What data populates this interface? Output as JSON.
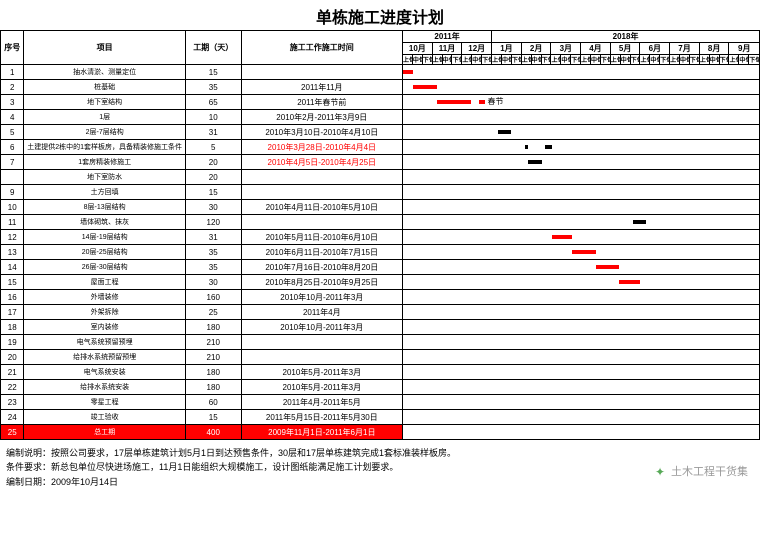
{
  "title": "单栋施工进度计划",
  "columns": {
    "seq": "序号",
    "name": "项目",
    "duration": "工期（天）",
    "time": "施工工作施工时间"
  },
  "year_groups": [
    {
      "label": "2011年",
      "months": [
        "10月",
        "11月",
        "12月"
      ]
    },
    {
      "label": "2018年",
      "months": [
        "1月",
        "2月",
        "3月",
        "4月",
        "5月",
        "6月",
        "7月",
        "8月",
        "9月"
      ]
    }
  ],
  "sub_labels": [
    "上旬",
    "中旬",
    "下旬"
  ],
  "timeline": {
    "total_subcols": 36
  },
  "bar_styles": {
    "black": "#000000",
    "red": "#ff0000"
  },
  "rows": [
    {
      "seq": 1,
      "name": "抽水清淤、测量定位",
      "dur": 15,
      "time": "",
      "bars": [
        {
          "start": 0,
          "len": 1.5,
          "color": "red"
        }
      ]
    },
    {
      "seq": 2,
      "name": "桩基础",
      "dur": 35,
      "time": "2011年11月",
      "bars": [
        {
          "start": 1.5,
          "len": 3.5,
          "color": "red"
        }
      ]
    },
    {
      "seq": 3,
      "name": "地下室结构",
      "dur": 65,
      "time": "2011年春节前",
      "bars": [
        {
          "start": 5,
          "len": 5,
          "color": "red"
        },
        {
          "start": 11.2,
          "len": 1.0,
          "color": "red"
        }
      ],
      "annot": {
        "pos": 12.5,
        "text": "春节"
      }
    },
    {
      "seq": 4,
      "name": "1层",
      "dur": 10,
      "time": "2010年2月-2011年3月9日",
      "bars": []
    },
    {
      "seq": 5,
      "name": "2层-7层结构",
      "dur": 31,
      "time": "2010年3月10日-2010年4月10日",
      "bars": [
        {
          "start": 14,
          "len": 2,
          "color": "black"
        }
      ]
    },
    {
      "seq": 6,
      "name": "土建提供2栋中的1套样板房，具备精装修施工条件",
      "dur": 5,
      "time": "2010年3月28日-2010年4月4日",
      "time_red": true,
      "bars": [
        {
          "start": 18,
          "len": 0.5,
          "color": "black"
        },
        {
          "start": 21,
          "len": 1,
          "color": "black"
        }
      ]
    },
    {
      "seq": 7,
      "name": "1套房精装修施工",
      "dur": 20,
      "time": "2010年4月5日-2010年4月25日",
      "time_red": true,
      "bars": [
        {
          "start": 18.5,
          "len": 2,
          "color": "black"
        }
      ]
    },
    {
      "seq": "",
      "name": "地下室防水",
      "dur": 20,
      "time": "",
      "bars": []
    },
    {
      "seq": 9,
      "name": "土方回填",
      "dur": 15,
      "time": "",
      "bars": []
    },
    {
      "seq": 10,
      "name": "8层-13层结构",
      "dur": 30,
      "time": "2010年4月11日-2010年5月10日",
      "bars": []
    },
    {
      "seq": 11,
      "name": "墙体砌筑、抹灰",
      "dur": 120,
      "time": "",
      "bars": [
        {
          "start": 34,
          "len": 2,
          "color": "black"
        }
      ]
    },
    {
      "seq": 12,
      "name": "14层-19层结构",
      "dur": 31,
      "time": "2010年5月11日-2010年6月10日",
      "bars": [
        {
          "start": 22,
          "len": 3,
          "color": "red"
        }
      ]
    },
    {
      "seq": 13,
      "name": "20层-25层结构",
      "dur": 35,
      "time": "2010年6月11日-2010年7月15日",
      "bars": [
        {
          "start": 25,
          "len": 3.5,
          "color": "red"
        }
      ]
    },
    {
      "seq": 14,
      "name": "26层-30层结构",
      "dur": 35,
      "time": "2010年7月16日-2010年8月20日",
      "bars": [
        {
          "start": 28.5,
          "len": 3.5,
          "color": "red"
        }
      ]
    },
    {
      "seq": 15,
      "name": "屋面工程",
      "dur": 30,
      "time": "2010年8月25日-2010年9月25日",
      "bars": [
        {
          "start": 32,
          "len": 3,
          "color": "red"
        }
      ]
    },
    {
      "seq": 16,
      "name": "外墙装修",
      "dur": 160,
      "time": "2010年10月-2011年3月",
      "bars": []
    },
    {
      "seq": 17,
      "name": "外架拆除",
      "dur": 25,
      "time": "2011年4月",
      "bars": []
    },
    {
      "seq": 18,
      "name": "室内装修",
      "dur": 180,
      "time": "2010年10月-2011年3月",
      "bars": []
    },
    {
      "seq": 19,
      "name": "电气系统预留预埋",
      "dur": 210,
      "time": "",
      "bars": []
    },
    {
      "seq": 20,
      "name": "给排水系统预留预埋",
      "dur": 210,
      "time": "",
      "bars": []
    },
    {
      "seq": 21,
      "name": "电气系统安装",
      "dur": 180,
      "time": "2010年5月-2011年3月",
      "bars": []
    },
    {
      "seq": 22,
      "name": "给排水系统安装",
      "dur": 180,
      "time": "2010年5月-2011年3月",
      "bars": []
    },
    {
      "seq": 23,
      "name": "零星工程",
      "dur": 60,
      "time": "2011年4月-2011年5月",
      "bars": []
    },
    {
      "seq": 24,
      "name": "竣工验收",
      "dur": 15,
      "time": "2011年5月15日-2011年5月30日",
      "bars": []
    },
    {
      "seq": 25,
      "name": "总工期",
      "dur": 400,
      "time": "2009年11月1日-2011年6月1日",
      "red_row": true,
      "bars": []
    }
  ],
  "notes": [
    "编制说明：按照公司要求，17层单栋建筑计划5月1日到达预售条件，30层和17层单栋建筑完成1套标准装样板房。",
    "条件要求：新总包单位尽快进场施工，11月1日能组织大规模施工，设计图纸能满足施工计划要求。",
    "编制日期：2009年10月14日"
  ],
  "watermark": "土木工程干货集"
}
